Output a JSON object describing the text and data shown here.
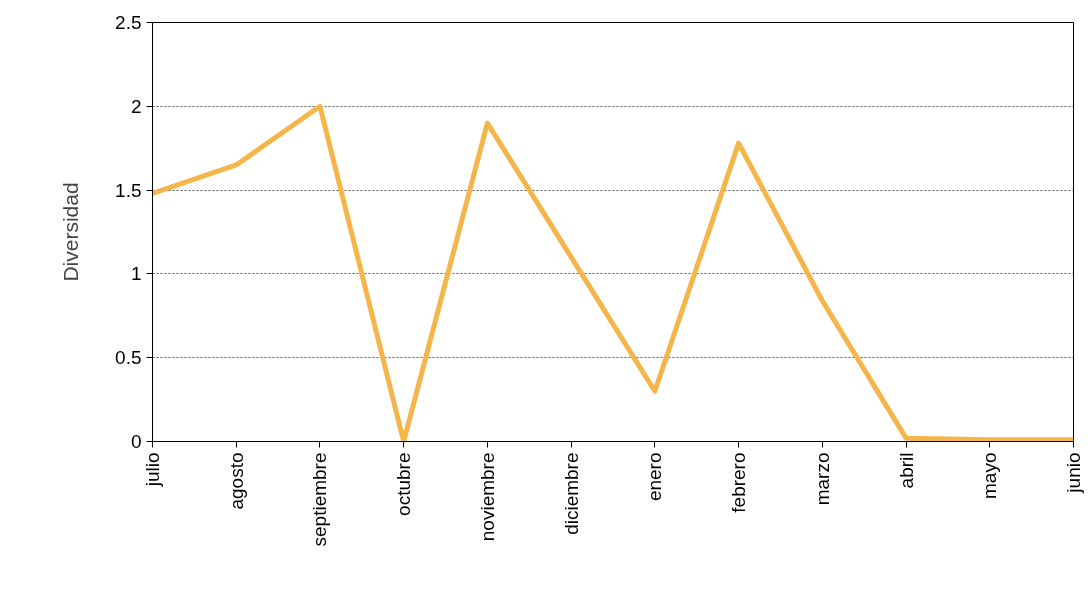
{
  "chart_data": {
    "type": "line",
    "ylabel": "Diversidad",
    "categories": [
      "julio",
      "agosto",
      "septiembre",
      "octubre",
      "noviembre",
      "diciembre",
      "enero",
      "febrero",
      "marzo",
      "abril",
      "mayo",
      "junio"
    ],
    "series": [
      {
        "color": "#f5b54a",
        "values": [
          1.48,
          1.65,
          2.0,
          0.0,
          1.9,
          1.1,
          0.3,
          1.78,
          0.84,
          0.02,
          0.01,
          0.01
        ]
      }
    ],
    "ylim": [
      0,
      2.5
    ],
    "yticks": [
      0,
      0.5,
      1,
      1.5,
      2,
      2.5
    ],
    "grid": "y",
    "line_style": "solid"
  }
}
